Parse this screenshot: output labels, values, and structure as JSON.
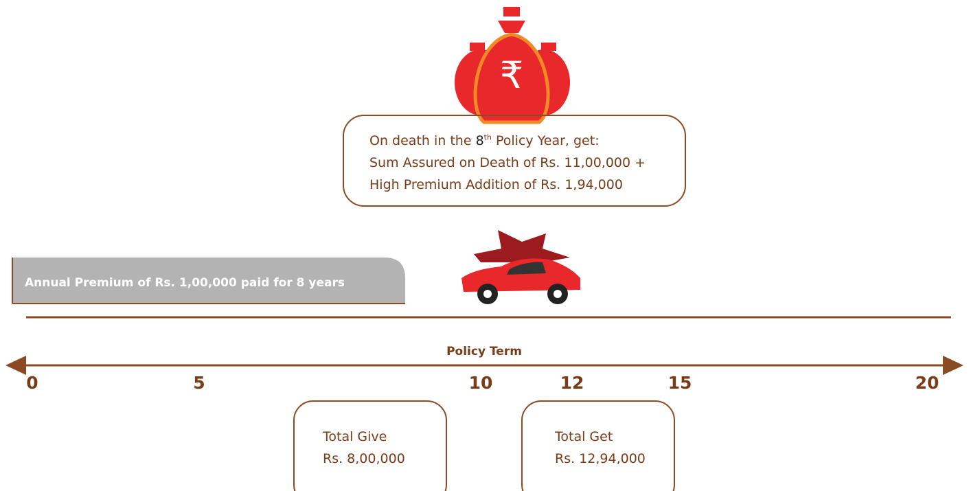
{
  "death_box": {
    "line1": {
      "before": "On death in the",
      "year": "8",
      "suffix": "th",
      "after": "Policy Year, get:"
    },
    "line2": "Sum Assured on Death of Rs. 11,00,000 +",
    "line3": "High Premium Addition of Rs. 1,94,000"
  },
  "premium_bar": {
    "label": "Annual Premium of Rs. 1,00,000 paid for 8 years"
  },
  "timeline": {
    "title": "Policy Term",
    "ticks": [
      0,
      5,
      10,
      12,
      15,
      20
    ]
  },
  "total_give": {
    "title": "Total Give",
    "amount": "Rs. 8,00,000"
  },
  "total_get": {
    "title": "Total Get",
    "amount": "Rs. 12,94,000"
  }
}
